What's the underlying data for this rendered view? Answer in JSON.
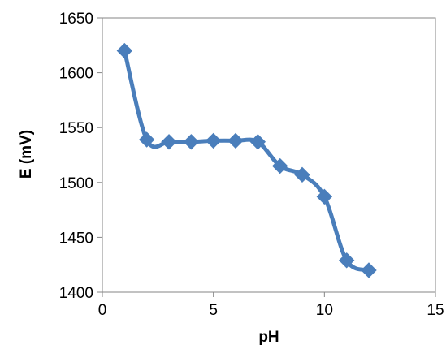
{
  "chart_data": {
    "type": "line",
    "title": "",
    "xlabel": "pH",
    "ylabel": "E (mV)",
    "xlim": [
      0,
      15
    ],
    "ylim": [
      1400,
      1650
    ],
    "x_ticks": [
      0,
      5,
      10,
      15
    ],
    "y_ticks": [
      1400,
      1450,
      1500,
      1550,
      1600,
      1650
    ],
    "grid": false,
    "legend": "none",
    "series": [
      {
        "x": [
          1,
          2,
          3,
          4,
          5,
          6,
          7,
          8,
          9,
          10,
          11,
          12
        ],
        "y": [
          1620,
          1539,
          1537,
          1537,
          1538,
          1538,
          1537,
          1515,
          1507,
          1487,
          1429,
          1420
        ],
        "color": "#4a7ebb",
        "marker": "diamond",
        "smooth": true
      }
    ]
  }
}
